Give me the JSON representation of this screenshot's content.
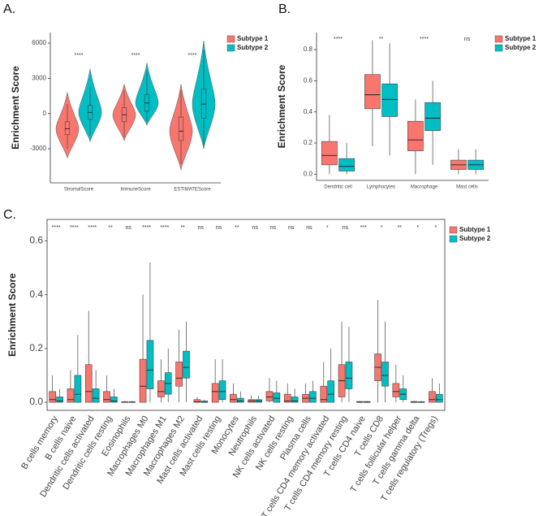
{
  "chart_data": [
    {
      "type": "violin",
      "panel": "A.",
      "ylabel": "Enrichment Score",
      "categories": [
        "StromalScore",
        "ImmuneScore",
        "ESTIMATEScore"
      ],
      "significance": [
        "****",
        "****",
        "****"
      ],
      "ylim": [
        -5900,
        6900
      ],
      "yticks": [
        -3000,
        0,
        3000,
        6000
      ],
      "border": false,
      "legend": "right",
      "series": [
        {
          "name": "Subtype 1",
          "color": "#F8766D",
          "boxes": [
            {
              "min": -3800,
              "low": -3000,
              "q1": -1800,
              "median": -1300,
              "q3": -700,
              "high": 800,
              "max": 1800
            },
            {
              "min": -2300,
              "low": -2000,
              "q1": -700,
              "median": -100,
              "q3": 500,
              "high": 2000,
              "max": 2500
            },
            {
              "min": -4800,
              "low": -4300,
              "q1": -2300,
              "median": -1500,
              "q3": -300,
              "high": 2000,
              "max": 2500
            }
          ]
        },
        {
          "name": "Subtype 2",
          "color": "#00BFC4",
          "boxes": [
            {
              "min": -2400,
              "low": -1800,
              "q1": -500,
              "median": 100,
              "q3": 700,
              "high": 2300,
              "max": 3800
            },
            {
              "min": -1000,
              "low": -700,
              "q1": 200,
              "median": 900,
              "q3": 1600,
              "high": 3600,
              "max": 4300
            },
            {
              "min": -3000,
              "low": -2700,
              "q1": -400,
              "median": 800,
              "q3": 2100,
              "high": 5400,
              "max": 6200
            }
          ]
        }
      ]
    },
    {
      "type": "box",
      "panel": "B.",
      "ylabel": "Enrichment Score",
      "categories": [
        "Dendritic cell",
        "Lymphocytes",
        "Macrophage",
        "Mast cells"
      ],
      "significance": [
        "****",
        "**",
        "****",
        "ns"
      ],
      "ylim": [
        -0.04,
        0.91
      ],
      "yticks": [
        {
          "value": 0,
          "label": "0.0"
        },
        0.2,
        0.4,
        0.6,
        0.8
      ],
      "border": false,
      "legend": "right",
      "series": [
        {
          "name": "Subtype 1",
          "color": "#F8766D",
          "boxes": [
            {
              "low": 0,
              "q1": 0.06,
              "median": 0.12,
              "q3": 0.21,
              "high": 0.38
            },
            {
              "low": 0.18,
              "q1": 0.42,
              "median": 0.51,
              "q3": 0.64,
              "high": 0.86
            },
            {
              "low": 0,
              "q1": 0.15,
              "median": 0.22,
              "q3": 0.34,
              "high": 0.48
            },
            {
              "low": 0,
              "q1": 0.03,
              "median": 0.06,
              "q3": 0.09,
              "high": 0.16
            }
          ]
        },
        {
          "name": "Subtype 2",
          "color": "#00BFC4",
          "boxes": [
            {
              "low": 0,
              "q1": 0.02,
              "median": 0.05,
              "q3": 0.1,
              "high": 0.2
            },
            {
              "low": 0.12,
              "q1": 0.37,
              "median": 0.48,
              "q3": 0.58,
              "high": 0.84
            },
            {
              "low": 0.06,
              "q1": 0.28,
              "median": 0.36,
              "q3": 0.46,
              "high": 0.6
            },
            {
              "low": 0,
              "q1": 0.03,
              "median": 0.06,
              "q3": 0.09,
              "high": 0.16
            }
          ]
        }
      ]
    },
    {
      "type": "box",
      "panel": "C.",
      "ylabel": "Enrichment Score",
      "categories": [
        "B cells memory",
        "B cells naive",
        "Dendritic cells activated",
        "Dendritic cells resting",
        "Eosinophils",
        "Macrophages M0",
        "Macrophages M1",
        "Macrophages M2",
        "Mast cells activated",
        "Mast cells resting",
        "Monocytes",
        "Neutrophils",
        "NK cells activated",
        "NK cells resting",
        "Plasma cells",
        "T cells CD4 memory activated",
        "T cells CD4 memory resting",
        "T cells CD4 naive",
        "T cells CD8",
        "T cells follicular helper",
        "T cells gamma delta",
        "T cells regulatory (Tregs)"
      ],
      "significance": [
        "****",
        "****",
        "****",
        "**",
        "ns",
        "****",
        "****",
        "**",
        "ns",
        "ns",
        "**",
        "ns",
        "ns",
        "ns",
        "ns",
        "*",
        "ns",
        "***",
        "*",
        "**",
        "*",
        "*"
      ],
      "ylim": [
        -0.03,
        0.68
      ],
      "yticks": [
        {
          "value": 0,
          "label": "0.0"
        },
        0.2,
        0.4,
        0.6
      ],
      "border": true,
      "legend": "right",
      "series": [
        {
          "name": "Subtype 1",
          "color": "#F8766D",
          "boxes": [
            {
              "low": 0,
              "q1": 0,
              "median": 0.01,
              "q3": 0.04,
              "high": 0.1
            },
            {
              "low": 0,
              "q1": 0,
              "median": 0.01,
              "q3": 0.05,
              "high": 0.12
            },
            {
              "low": 0,
              "q1": 0,
              "median": 0.04,
              "q3": 0.14,
              "high": 0.34
            },
            {
              "low": 0,
              "q1": 0,
              "median": 0.01,
              "q3": 0.04,
              "high": 0.1
            },
            {
              "low": 0,
              "q1": 0,
              "median": 0,
              "q3": 0.002,
              "high": 0.005
            },
            {
              "low": 0,
              "q1": 0,
              "median": 0.06,
              "q3": 0.16,
              "high": 0.4
            },
            {
              "low": 0,
              "q1": 0.02,
              "median": 0.04,
              "q3": 0.08,
              "high": 0.16
            },
            {
              "low": 0,
              "q1": 0.06,
              "median": 0.09,
              "q3": 0.15,
              "high": 0.27
            },
            {
              "low": 0,
              "q1": 0,
              "median": 0.002,
              "q3": 0.01,
              "high": 0.02
            },
            {
              "low": 0,
              "q1": 0,
              "median": 0.04,
              "q3": 0.07,
              "high": 0.16
            },
            {
              "low": 0,
              "q1": 0,
              "median": 0.01,
              "q3": 0.03,
              "high": 0.07
            },
            {
              "low": 0,
              "q1": 0,
              "median": 0.005,
              "q3": 0.01,
              "high": 0.025
            },
            {
              "low": 0,
              "q1": 0.005,
              "median": 0.02,
              "q3": 0.04,
              "high": 0.09
            },
            {
              "low": 0,
              "q1": 0,
              "median": 0.005,
              "q3": 0.03,
              "high": 0.07
            },
            {
              "low": 0,
              "q1": 0,
              "median": 0.015,
              "q3": 0.03,
              "high": 0.07
            },
            {
              "low": 0,
              "q1": 0,
              "median": 0.01,
              "q3": 0.06,
              "high": 0.15
            },
            {
              "low": 0,
              "q1": 0.02,
              "median": 0.08,
              "q3": 0.14,
              "high": 0.3
            },
            {
              "low": 0,
              "q1": 0,
              "median": 0,
              "q3": 0.003,
              "high": 0.005
            },
            {
              "low": 0,
              "q1": 0.08,
              "median": 0.13,
              "q3": 0.18,
              "high": 0.38
            },
            {
              "low": 0,
              "q1": 0.02,
              "median": 0.04,
              "q3": 0.07,
              "high": 0.14
            },
            {
              "low": 0,
              "q1": 0,
              "median": 0,
              "q3": 0.003,
              "high": 0.006
            },
            {
              "low": 0,
              "q1": 0,
              "median": 0.01,
              "q3": 0.04,
              "high": 0.09
            }
          ]
        },
        {
          "name": "Subtype 2",
          "color": "#00BFC4",
          "boxes": [
            {
              "low": 0,
              "q1": 0,
              "median": 0.005,
              "q3": 0.02,
              "high": 0.05
            },
            {
              "low": 0,
              "q1": 0,
              "median": 0.03,
              "q3": 0.1,
              "high": 0.25
            },
            {
              "low": 0,
              "q1": 0,
              "median": 0.015,
              "q3": 0.05,
              "high": 0.12
            },
            {
              "low": 0,
              "q1": 0,
              "median": 0.005,
              "q3": 0.02,
              "high": 0.05
            },
            {
              "low": 0,
              "q1": 0,
              "median": 0,
              "q3": 0.002,
              "high": 0.005
            },
            {
              "low": 0,
              "q1": 0.05,
              "median": 0.12,
              "q3": 0.23,
              "high": 0.52
            },
            {
              "low": 0,
              "q1": 0.03,
              "median": 0.07,
              "q3": 0.11,
              "high": 0.2
            },
            {
              "low": 0,
              "q1": 0.09,
              "median": 0.13,
              "q3": 0.19,
              "high": 0.3
            },
            {
              "low": 0,
              "q1": 0,
              "median": 0,
              "q3": 0.005,
              "high": 0.01
            },
            {
              "low": 0,
              "q1": 0.01,
              "median": 0.04,
              "q3": 0.08,
              "high": 0.16
            },
            {
              "low": 0,
              "q1": 0,
              "median": 0.005,
              "q3": 0.015,
              "high": 0.04
            },
            {
              "low": 0,
              "q1": 0,
              "median": 0.005,
              "q3": 0.01,
              "high": 0.025
            },
            {
              "low": 0,
              "q1": 0,
              "median": 0.015,
              "q3": 0.035,
              "high": 0.08
            },
            {
              "low": 0,
              "q1": 0,
              "median": 0.005,
              "q3": 0.02,
              "high": 0.05
            },
            {
              "low": 0,
              "q1": 0,
              "median": 0.015,
              "q3": 0.04,
              "high": 0.08
            },
            {
              "low": 0,
              "q1": 0,
              "median": 0.03,
              "q3": 0.08,
              "high": 0.2
            },
            {
              "low": 0,
              "q1": 0.05,
              "median": 0.09,
              "q3": 0.15,
              "high": 0.28
            },
            {
              "low": 0,
              "q1": 0,
              "median": 0,
              "q3": 0.003,
              "high": 0.005
            },
            {
              "low": 0,
              "q1": 0.06,
              "median": 0.1,
              "q3": 0.15,
              "high": 0.3
            },
            {
              "low": 0,
              "q1": 0.01,
              "median": 0.03,
              "q3": 0.05,
              "high": 0.1
            },
            {
              "low": 0,
              "q1": 0,
              "median": 0,
              "q3": 0.002,
              "high": 0.005
            },
            {
              "low": 0,
              "q1": 0,
              "median": 0.01,
              "q3": 0.03,
              "high": 0.07
            }
          ]
        }
      ]
    }
  ]
}
